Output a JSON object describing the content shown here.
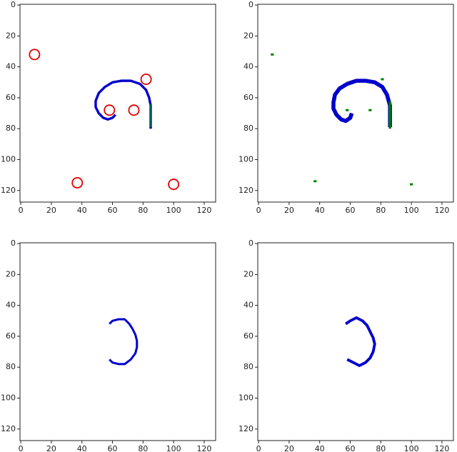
{
  "chart_data": [
    {
      "type": "line",
      "xlim": [
        -0.5,
        127.5
      ],
      "ylim": [
        127.5,
        -0.5
      ],
      "xticks": [
        0,
        20,
        40,
        60,
        80,
        100,
        120
      ],
      "yticks": [
        0,
        20,
        40,
        60,
        80,
        100,
        120
      ],
      "series": [
        {
          "color": "#0000cc",
          "linewidth": 1.6,
          "x": [
            85,
            85,
            84,
            82,
            78,
            72,
            66,
            60,
            55,
            51,
            49,
            49,
            51,
            54,
            57,
            60,
            62
          ],
          "values": [
            80,
            65,
            60,
            55,
            51,
            49,
            49,
            50,
            53,
            57,
            62,
            66,
            70,
            73,
            74,
            73,
            71
          ]
        },
        {
          "color": "#005f5f",
          "linewidth": 1.6,
          "x": [
            85,
            85
          ],
          "values": [
            64,
            79
          ]
        },
        {
          "color": "#e00000",
          "marker": "circle",
          "x": [
            9,
            82,
            58,
            74,
            37,
            100
          ],
          "values": [
            32,
            48,
            68,
            68,
            115,
            116
          ]
        }
      ]
    },
    {
      "type": "line",
      "xlim": [
        -0.5,
        127.5
      ],
      "ylim": [
        127.5,
        -0.5
      ],
      "xticks": [
        0,
        20,
        40,
        60,
        80,
        100,
        120
      ],
      "yticks": [
        0,
        20,
        40,
        60,
        80,
        100,
        120
      ],
      "series": [
        {
          "color": "#0000cc",
          "linewidth": 2.6,
          "x": [
            86,
            86,
            84,
            81,
            76,
            70,
            64,
            58,
            53,
            50,
            49,
            49,
            51,
            54,
            57,
            60,
            61
          ],
          "values": [
            79,
            65,
            58,
            53,
            50,
            49,
            49,
            51,
            54,
            58,
            63,
            67,
            71,
            74,
            75,
            73,
            70
          ]
        },
        {
          "color": "#007a00",
          "linewidth": 1.6,
          "x": [
            86,
            86
          ],
          "values": [
            62,
            80
          ]
        },
        {
          "color": "#008800",
          "marker": "square",
          "x": [
            9,
            81,
            58,
            73,
            37,
            100
          ],
          "values": [
            32,
            48,
            68,
            68,
            114,
            116
          ]
        }
      ]
    },
    {
      "type": "line",
      "xlim": [
        -0.5,
        127.5
      ],
      "ylim": [
        127.5,
        -0.5
      ],
      "xticks": [
        0,
        20,
        40,
        60,
        80,
        100,
        120
      ],
      "yticks": [
        0,
        20,
        40,
        60,
        80,
        100,
        120
      ],
      "series": [
        {
          "color": "#0000cc",
          "linewidth": 1.4,
          "x": [
            58,
            60,
            64,
            68,
            71,
            73,
            75,
            76,
            76,
            75,
            72,
            68,
            64,
            60,
            58
          ],
          "values": [
            52,
            50,
            49,
            49,
            52,
            55,
            59,
            63,
            67,
            71,
            75,
            78,
            78,
            77,
            75
          ]
        }
      ]
    },
    {
      "type": "line",
      "xlim": [
        -0.5,
        127.5
      ],
      "ylim": [
        127.5,
        -0.5
      ],
      "xticks": [
        0,
        20,
        40,
        60,
        80,
        100,
        120
      ],
      "yticks": [
        0,
        20,
        40,
        60,
        80,
        100,
        120
      ],
      "series": [
        {
          "color": "#0000cc",
          "linewidth": 1.8,
          "x": [
            57,
            60,
            64,
            68,
            71,
            73,
            75,
            76,
            75,
            73,
            70,
            66,
            62,
            58
          ],
          "values": [
            52,
            50,
            48,
            50,
            53,
            57,
            61,
            65,
            70,
            74,
            77,
            79,
            77,
            75
          ]
        }
      ]
    }
  ]
}
